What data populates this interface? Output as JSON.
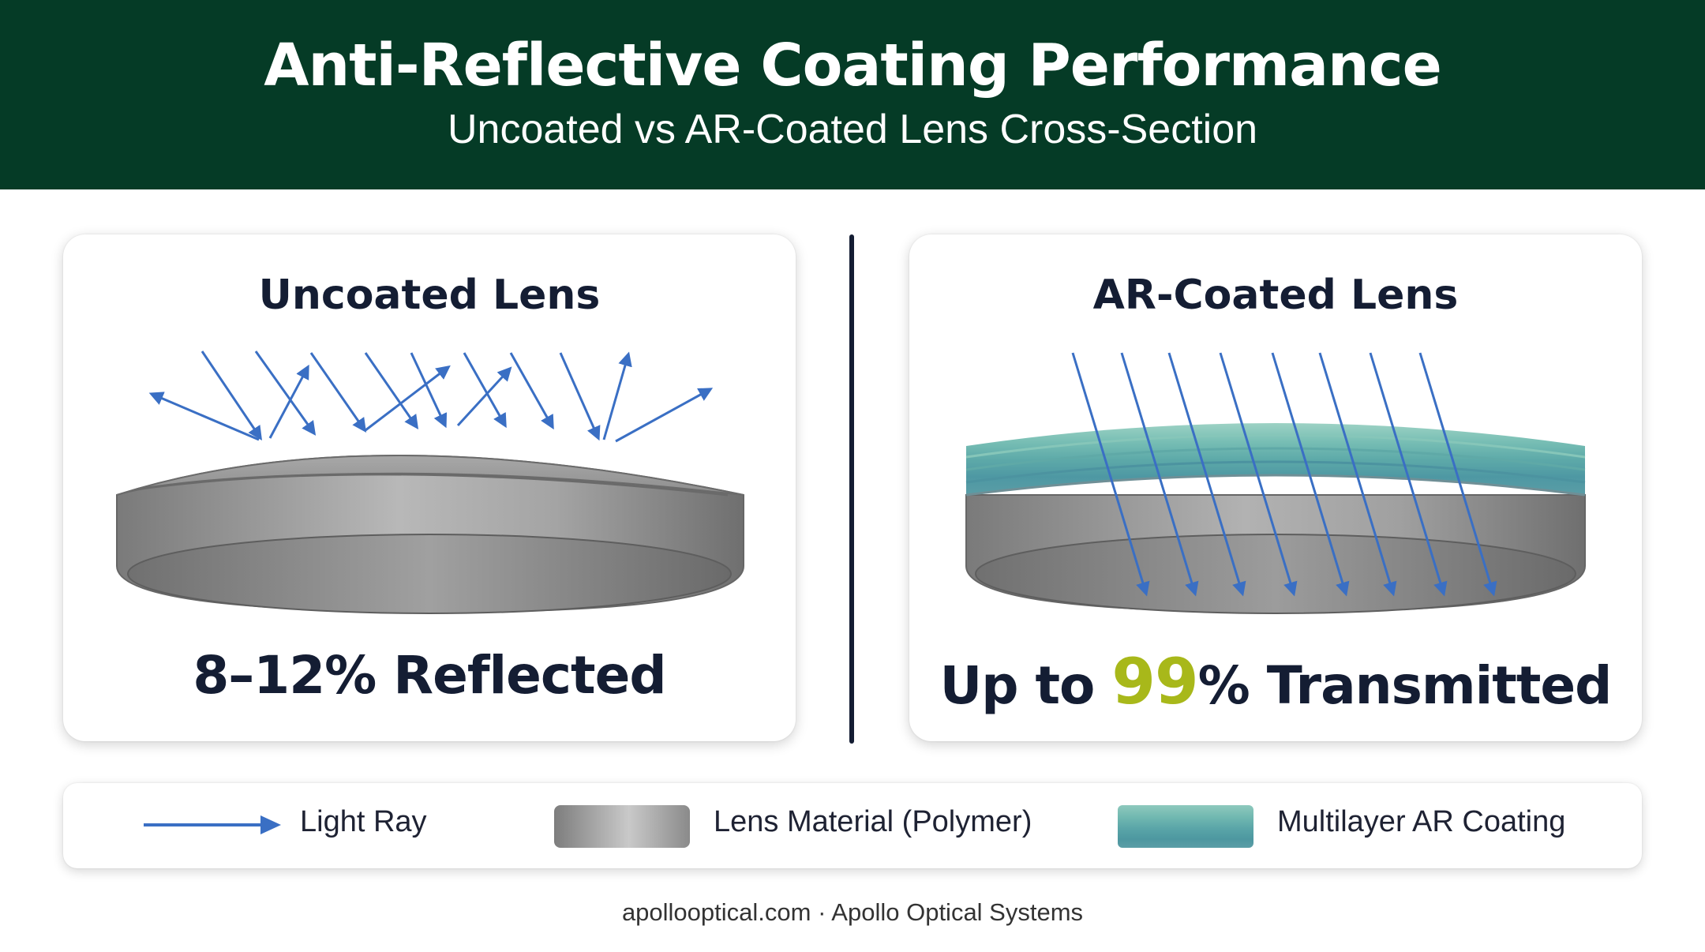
{
  "header": {
    "title": "Anti-Reflective Coating Performance",
    "subtitle": "Uncoated vs AR-Coated Lens Cross-Section"
  },
  "panels": {
    "uncoated": {
      "title": "Uncoated Lens",
      "stat": "8–12% Reflected"
    },
    "coated": {
      "title": "AR-Coated Lens",
      "stat_prefix": "Up to ",
      "stat_highlight": "99",
      "stat_suffix": "% Transmitted"
    }
  },
  "legend": {
    "items": [
      {
        "icon": "arrow-icon",
        "label": "Light Ray"
      },
      {
        "icon": "lens-material-swatch",
        "label": "Lens Material (Polymer)"
      },
      {
        "icon": "ar-coating-swatch",
        "label": "Multilayer AR Coating"
      }
    ]
  },
  "footer": {
    "text": "apollooptical.com · Apollo Optical Systems"
  },
  "colors": {
    "header_bg": "#053b26",
    "ray": "#3a6fc4",
    "highlight": "#a8b81a",
    "text_dark": "#141d33"
  }
}
